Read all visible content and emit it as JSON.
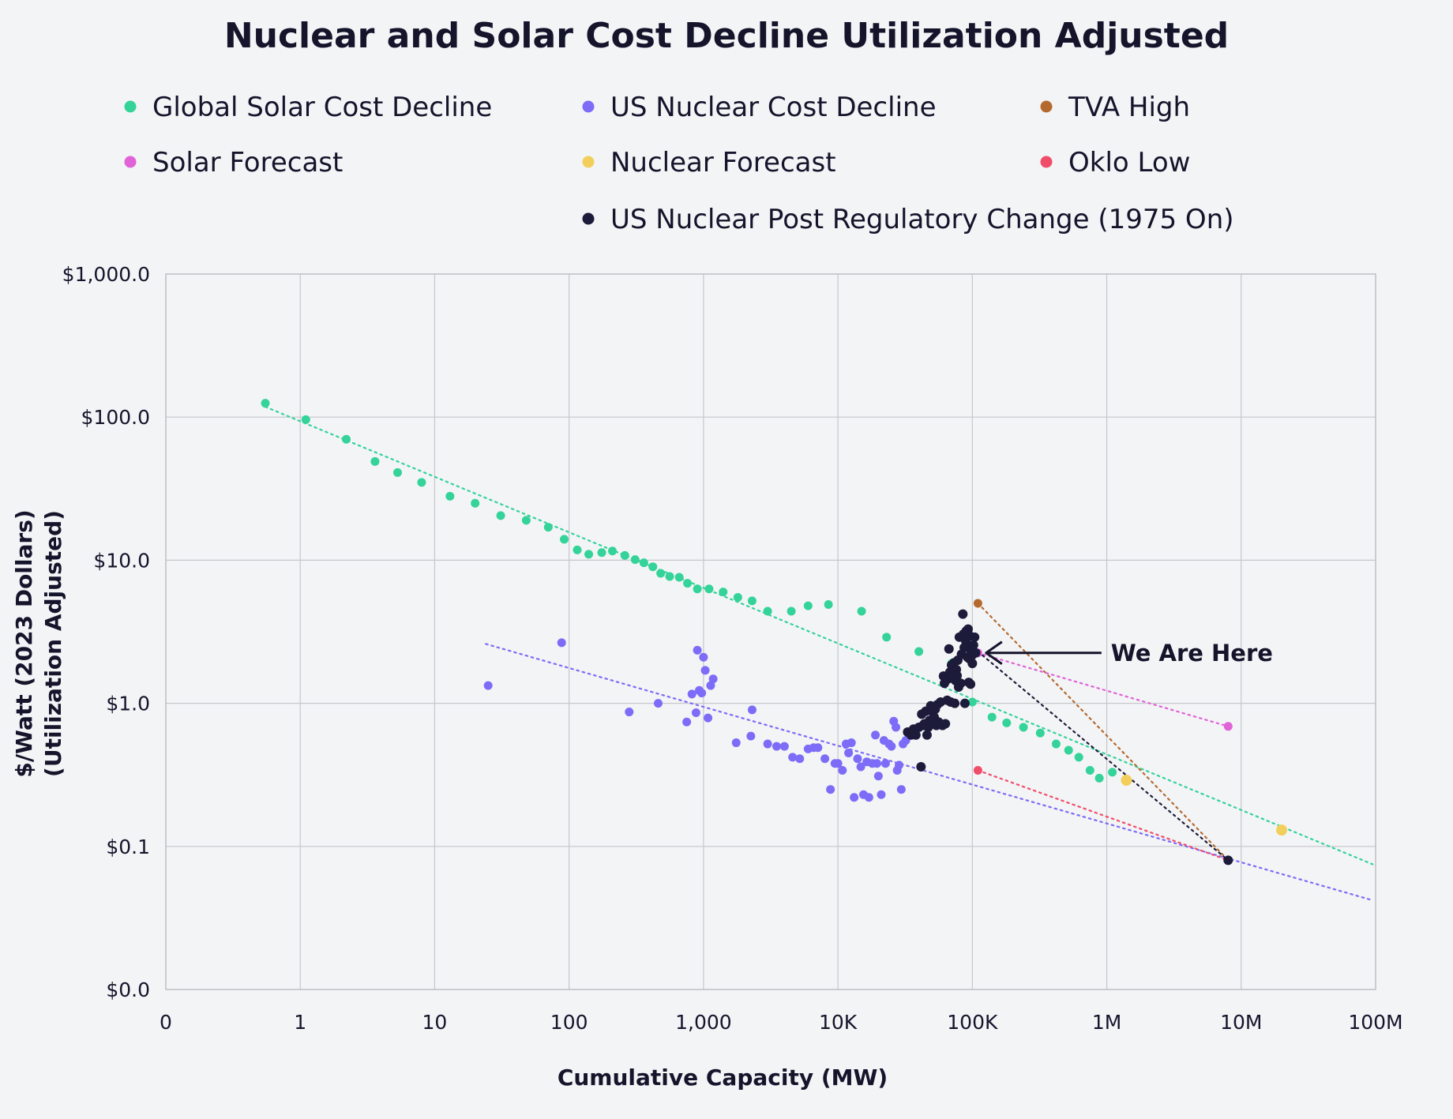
{
  "chart_data": {
    "type": "scatter",
    "title": "Nuclear and Solar Cost Decline Utilization Adjusted",
    "xlabel": "Cumulative Capacity (MW)",
    "ylabel_lines": [
      "$/Watt (2023 Dollars)",
      "(Utilization Adjusted)"
    ],
    "x_scale": "log",
    "y_scale": "log",
    "xlim": [
      0.1,
      100000000
    ],
    "ylim": [
      0.01,
      1000
    ],
    "grid": true,
    "legend_position": "top",
    "x_ticks": [
      {
        "value": 0.1,
        "label": "0"
      },
      {
        "value": 1,
        "label": "1"
      },
      {
        "value": 10,
        "label": "10"
      },
      {
        "value": 100,
        "label": "100"
      },
      {
        "value": 1000,
        "label": "1,000"
      },
      {
        "value": 10000,
        "label": "10K"
      },
      {
        "value": 100000,
        "label": "100K"
      },
      {
        "value": 1000000,
        "label": "1M"
      },
      {
        "value": 10000000,
        "label": "10M"
      },
      {
        "value": 100000000,
        "label": "100M"
      }
    ],
    "y_ticks": [
      {
        "value": 0.01,
        "label": "$0.0"
      },
      {
        "value": 0.1,
        "label": "$0.1"
      },
      {
        "value": 1,
        "label": "$1.0"
      },
      {
        "value": 10,
        "label": "$10.0"
      },
      {
        "value": 100,
        "label": "$100.0"
      },
      {
        "value": 1000,
        "label": "$1,000.0"
      }
    ],
    "series": [
      {
        "name": "Global Solar Cost Decline",
        "color": "#34d399",
        "points": [
          [
            0.55,
            125
          ],
          [
            1.1,
            96
          ],
          [
            2.2,
            70
          ],
          [
            3.6,
            49
          ],
          [
            5.3,
            41
          ],
          [
            8,
            35
          ],
          [
            13,
            28
          ],
          [
            20,
            25
          ],
          [
            31,
            20.5
          ],
          [
            48,
            19
          ],
          [
            70,
            17
          ],
          [
            92,
            14
          ],
          [
            115,
            11.8
          ],
          [
            140,
            11
          ],
          [
            175,
            11.3
          ],
          [
            210,
            11.6
          ],
          [
            260,
            10.8
          ],
          [
            310,
            10.1
          ],
          [
            360,
            9.6
          ],
          [
            420,
            9
          ],
          [
            480,
            8.1
          ],
          [
            560,
            7.7
          ],
          [
            660,
            7.6
          ],
          [
            760,
            6.9
          ],
          [
            900,
            6.3
          ],
          [
            1100,
            6.3
          ],
          [
            1400,
            6
          ],
          [
            1800,
            5.5
          ],
          [
            2300,
            5.2
          ],
          [
            3000,
            4.4
          ],
          [
            4500,
            4.4
          ],
          [
            6000,
            4.8
          ],
          [
            8500,
            4.9
          ],
          [
            15000,
            4.4
          ],
          [
            23000,
            2.9
          ],
          [
            40000,
            2.3
          ],
          [
            70000,
            1.9
          ],
          [
            100000,
            1.02
          ],
          [
            140000,
            0.8
          ],
          [
            180000,
            0.73
          ],
          [
            240000,
            0.68
          ],
          [
            320000,
            0.62
          ],
          [
            420000,
            0.52
          ],
          [
            520000,
            0.47
          ],
          [
            620000,
            0.42
          ],
          [
            750000,
            0.34
          ],
          [
            880000,
            0.3
          ],
          [
            1100000,
            0.33
          ]
        ]
      },
      {
        "name": "US Nuclear Cost Decline",
        "color": "#7c6cf7",
        "points": [
          [
            25,
            1.33
          ],
          [
            88,
            2.65
          ],
          [
            280,
            0.87
          ],
          [
            460,
            1
          ],
          [
            750,
            0.74
          ],
          [
            820,
            1.16
          ],
          [
            880,
            0.86
          ],
          [
            900,
            2.35
          ],
          [
            930,
            1.23
          ],
          [
            970,
            1.18
          ],
          [
            1000,
            2.1
          ],
          [
            1030,
            1.7
          ],
          [
            1080,
            0.79
          ],
          [
            1130,
            1.33
          ],
          [
            1180,
            1.48
          ],
          [
            1750,
            0.53
          ],
          [
            2250,
            0.59
          ],
          [
            2300,
            0.9
          ],
          [
            3000,
            0.52
          ],
          [
            3500,
            0.5
          ],
          [
            4000,
            0.5
          ],
          [
            4600,
            0.42
          ],
          [
            5200,
            0.41
          ],
          [
            6000,
            0.48
          ],
          [
            6600,
            0.49
          ],
          [
            7100,
            0.49
          ],
          [
            8000,
            0.41
          ],
          [
            8800,
            0.25
          ],
          [
            9500,
            0.38
          ],
          [
            10000,
            0.38
          ],
          [
            10800,
            0.34
          ],
          [
            11500,
            0.52
          ],
          [
            12000,
            0.45
          ],
          [
            12600,
            0.53
          ],
          [
            13200,
            0.22
          ],
          [
            14000,
            0.41
          ],
          [
            14800,
            0.36
          ],
          [
            15500,
            0.23
          ],
          [
            16400,
            0.39
          ],
          [
            17000,
            0.22
          ],
          [
            18000,
            0.38
          ],
          [
            19000,
            0.6
          ],
          [
            19500,
            0.38
          ],
          [
            20000,
            0.31
          ],
          [
            21000,
            0.23
          ],
          [
            22000,
            0.55
          ],
          [
            22600,
            0.38
          ],
          [
            24000,
            0.52
          ],
          [
            25000,
            0.5
          ],
          [
            26000,
            0.75
          ],
          [
            27000,
            0.68
          ],
          [
            27600,
            0.34
          ],
          [
            28500,
            0.37
          ],
          [
            29600,
            0.25
          ],
          [
            30500,
            0.52
          ],
          [
            32000,
            0.55
          ]
        ]
      },
      {
        "name": "TVA High",
        "color": "#b46a2e",
        "points": [
          [
            110000,
            5
          ],
          [
            8000000,
            0.08
          ]
        ]
      },
      {
        "name": "Solar Forecast",
        "color": "#e063d8",
        "points": [
          [
            110000,
            2.25
          ],
          [
            8000000,
            0.69
          ]
        ]
      },
      {
        "name": "Nuclear Forecast",
        "color": "#f2cf5b",
        "points": [
          [
            1400000,
            0.29
          ],
          [
            20000000,
            0.13
          ]
        ]
      },
      {
        "name": "Oklo Low",
        "color": "#f04d6a",
        "points": [
          [
            110000,
            0.34
          ],
          [
            8000000,
            0.08
          ]
        ]
      },
      {
        "name": "US Nuclear Post Regulatory Change (1975 On)",
        "color": "#1c1b3a",
        "points": [
          [
            33000,
            0.63
          ],
          [
            35000,
            0.6
          ],
          [
            36500,
            0.66
          ],
          [
            38000,
            0.6
          ],
          [
            40000,
            0.68
          ],
          [
            41500,
            0.36
          ],
          [
            42000,
            0.84
          ],
          [
            43000,
            0.7
          ],
          [
            44000,
            0.72
          ],
          [
            45000,
            0.88
          ],
          [
            46000,
            0.6
          ],
          [
            47000,
            0.68
          ],
          [
            48000,
            0.76
          ],
          [
            49000,
            0.96
          ],
          [
            50000,
            0.88
          ],
          [
            51000,
            0.72
          ],
          [
            52000,
            0.8
          ],
          [
            53000,
            0.91
          ],
          [
            54000,
            0.7
          ],
          [
            55000,
            0.98
          ],
          [
            56000,
            0.74
          ],
          [
            58000,
            1.02
          ],
          [
            60000,
            0.7
          ],
          [
            61000,
            1.55
          ],
          [
            62000,
            1.38
          ],
          [
            63000,
            0.72
          ],
          [
            64000,
            1.52
          ],
          [
            65000,
            1.05
          ],
          [
            66000,
            1.48
          ],
          [
            67000,
            2.4
          ],
          [
            68000,
            1.65
          ],
          [
            69000,
            1.02
          ],
          [
            70000,
            1.85
          ],
          [
            71000,
            1.6
          ],
          [
            72000,
            1.5
          ],
          [
            73000,
            1.92
          ],
          [
            74000,
            1.0
          ],
          [
            75000,
            1.44
          ],
          [
            76000,
            1.72
          ],
          [
            77000,
            1.56
          ],
          [
            78000,
            2.0
          ],
          [
            79000,
            1.3
          ],
          [
            80000,
            2.9
          ],
          [
            82000,
            1.38
          ],
          [
            83000,
            2.2
          ],
          [
            85000,
            4.2
          ],
          [
            86000,
            3.05
          ],
          [
            87000,
            2.45
          ],
          [
            88000,
            1.0
          ],
          [
            89000,
            2.75
          ],
          [
            90000,
            3.2
          ],
          [
            91000,
            2.6
          ],
          [
            92000,
            2.1
          ],
          [
            93000,
            3.3
          ],
          [
            94000,
            1.4
          ],
          [
            95000,
            2.05
          ],
          [
            96000,
            2.95
          ],
          [
            97000,
            1.36
          ],
          [
            98000,
            2.3
          ],
          [
            99000,
            2.15
          ],
          [
            100000,
            1.9
          ],
          [
            102000,
            2.55
          ],
          [
            104000,
            2.9
          ],
          [
            106000,
            2.25
          ],
          [
            8000000,
            0.08
          ]
        ]
      }
    ],
    "trendlines": [
      {
        "series": "Global Solar Cost Decline",
        "color": "#34d399",
        "from": [
          0.55,
          118
        ],
        "to": [
          95000000,
          0.075
        ]
      },
      {
        "series": "US Nuclear Cost Decline",
        "color": "#7c6cf7",
        "from": [
          24,
          2.6
        ],
        "to": [
          95000000,
          0.042
        ]
      },
      {
        "series": "TVA High",
        "color": "#b46a2e",
        "from": [
          110000,
          5
        ],
        "to": [
          8000000,
          0.08
        ]
      },
      {
        "series": "Solar Forecast",
        "color": "#e063d8",
        "from": [
          110000,
          2.25
        ],
        "to": [
          8000000,
          0.69
        ]
      },
      {
        "series": "Oklo Low",
        "color": "#f04d6a",
        "from": [
          110000,
          0.34
        ],
        "to": [
          8000000,
          0.08
        ]
      },
      {
        "series": "US Nuclear Post Regulatory Change (1975 On)",
        "color": "#1c1b3a",
        "from": [
          110000,
          2.3
        ],
        "to": [
          8000000,
          0.08
        ]
      }
    ],
    "annotation": {
      "text": "We Are Here",
      "x": 120000,
      "y": 2.25
    }
  }
}
